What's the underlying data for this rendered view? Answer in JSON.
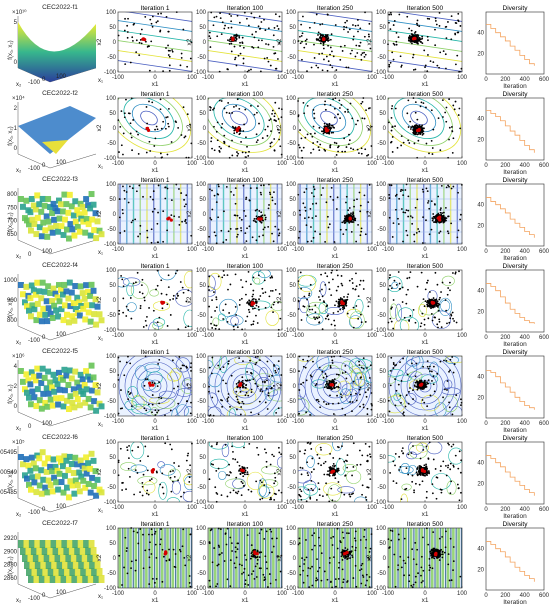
{
  "figure": {
    "columns": [
      "3d-surface",
      "Iteration 1",
      "Iteration 100",
      "Iteration 250",
      "Iteration 500",
      "Diversity"
    ],
    "iteration_titles": [
      "Iteration 1",
      "Iteration 100",
      "Iteration 250",
      "Iteration 500"
    ],
    "diversity_title": "Diversity",
    "axis": {
      "x1": "x1",
      "x2": "x2",
      "x1_sub": "x₁",
      "x2_sub": "x₂",
      "fxy": "f(x₁, x₂)",
      "iteration": "Iteration",
      "contour_xticks": [
        "-100",
        "0",
        "100"
      ],
      "contour_yticks": [
        "100",
        "50",
        "0",
        "-50",
        "-100"
      ],
      "div_xticks": [
        "0",
        "200",
        "400",
        "600"
      ],
      "surf_ticks": [
        "-100",
        "0",
        "100"
      ],
      "surf_ticks_short": [
        "0",
        "100"
      ]
    },
    "colors": {
      "orange": "#f4a460",
      "contour": [
        "#4a5fc1",
        "#2f8fc4",
        "#22b5a8",
        "#8fd16a",
        "#e3e33a"
      ],
      "swarm": "#000000",
      "best": "#d40000"
    }
  },
  "chart_data": [
    {
      "name": "CEC2022-f1",
      "type": "surface+scatter+line",
      "title": "CEC2022-f1",
      "z_exponent": "×10¹⁰",
      "z_ticks": [
        "5",
        "0"
      ],
      "diversity": {
        "xlim": [
          0,
          600
        ],
        "ylim": [
          0,
          60
        ],
        "yticks": [
          20,
          40
        ],
        "x": [
          0,
          50,
          100,
          150,
          200,
          250,
          300,
          350,
          400,
          450,
          500
        ],
        "y": [
          48,
          44,
          40,
          36,
          32,
          27,
          23,
          18,
          14,
          10,
          8
        ]
      }
    },
    {
      "name": "CEC2022-f2",
      "type": "surface+scatter+line",
      "title": "CEC2022-f2",
      "z_exponent": "×10⁴",
      "z_ticks": [
        "2",
        "1",
        "0"
      ],
      "diversity": {
        "xlim": [
          0,
          600
        ],
        "ylim": [
          0,
          60
        ],
        "yticks": [
          20,
          40
        ],
        "x": [
          0,
          50,
          100,
          150,
          200,
          250,
          300,
          350,
          400,
          450,
          500
        ],
        "y": [
          48,
          45,
          42,
          38,
          33,
          28,
          24,
          19,
          14,
          10,
          7
        ]
      }
    },
    {
      "name": "CEC2022-f3",
      "type": "surface+scatter+line",
      "title": "CEC2022-f3",
      "z_exponent": "",
      "z_ticks": [
        "800",
        "750",
        "700",
        "650"
      ],
      "diversity": {
        "xlim": [
          0,
          600
        ],
        "ylim": [
          0,
          60
        ],
        "yticks": [
          20,
          40
        ],
        "x": [
          0,
          50,
          100,
          150,
          200,
          250,
          300,
          350,
          400,
          450,
          500
        ],
        "y": [
          47,
          43,
          40,
          36,
          32,
          26,
          22,
          18,
          14,
          11,
          8
        ]
      }
    },
    {
      "name": "CEC2022-f4",
      "type": "surface+scatter+line",
      "title": "CEC2022-f4",
      "z_exponent": "",
      "z_ticks": [
        "1000",
        "900",
        "800"
      ],
      "diversity": {
        "xlim": [
          0,
          600
        ],
        "ylim": [
          0,
          60
        ],
        "yticks": [
          20,
          40
        ],
        "x": [
          0,
          50,
          100,
          150,
          200,
          250,
          300,
          350,
          400,
          450,
          500
        ],
        "y": [
          47,
          44,
          40,
          34,
          28,
          22,
          18,
          14,
          11,
          9,
          8
        ]
      }
    },
    {
      "name": "CEC2022-f5",
      "type": "surface+scatter+line",
      "title": "CEC2022-f5",
      "z_exponent": "×10⁶",
      "z_ticks": [
        "4",
        "2",
        "0"
      ],
      "diversity": {
        "xlim": [
          0,
          600
        ],
        "ylim": [
          0,
          60
        ],
        "yticks": [
          20,
          40
        ],
        "x": [
          0,
          50,
          100,
          150,
          200,
          250,
          300,
          350,
          400,
          450,
          500
        ],
        "y": [
          46,
          44,
          40,
          34,
          30,
          25,
          20,
          16,
          12,
          10,
          8
        ]
      }
    },
    {
      "name": "CEC2022-f6",
      "type": "surface+scatter+line",
      "title": "CEC2022-f6",
      "z_exponent": "×10⁵",
      "z_ticks": [
        "9.85005495",
        "9.8500549",
        "9.85005485"
      ],
      "diversity": {
        "xlim": [
          0,
          600
        ],
        "ylim": [
          0,
          60
        ],
        "yticks": [
          20,
          40
        ],
        "x": [
          0,
          50,
          100,
          150,
          200,
          250,
          300,
          350,
          400,
          450,
          500
        ],
        "y": [
          47,
          44,
          40,
          36,
          31,
          26,
          22,
          18,
          14,
          11,
          8
        ]
      }
    },
    {
      "name": "CEC2022-f7",
      "type": "surface+scatter+line",
      "title": "CEC2022-f7",
      "z_exponent": "",
      "z_ticks": [
        "2920",
        "2900",
        "2880",
        "2860"
      ],
      "diversity": {
        "xlim": [
          0,
          600
        ],
        "ylim": [
          0,
          60
        ],
        "yticks": [
          20,
          40
        ],
        "x": [
          0,
          50,
          100,
          150,
          200,
          250,
          300,
          350,
          400,
          450,
          500
        ],
        "y": [
          47,
          44,
          40,
          37,
          32,
          27,
          22,
          18,
          14,
          11,
          8
        ]
      }
    }
  ]
}
